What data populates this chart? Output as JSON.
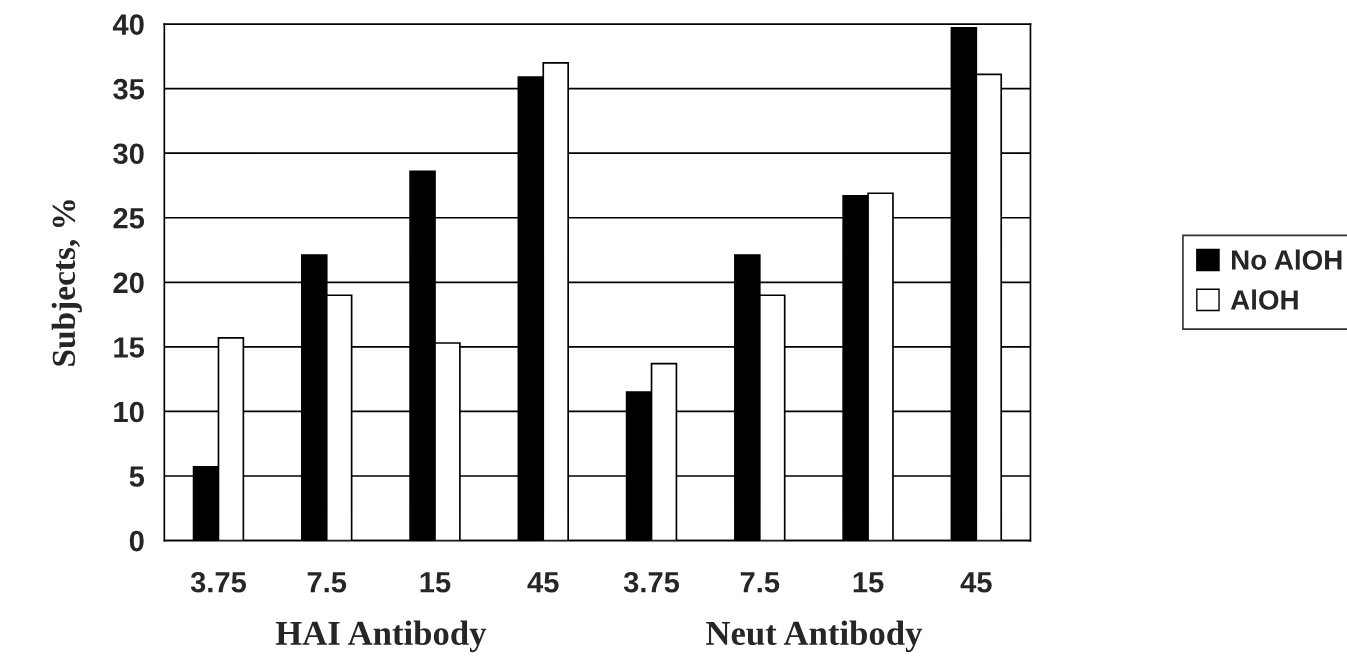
{
  "chart_data": {
    "type": "bar",
    "ylabel": "Subjects, %",
    "categories": [
      "3.75",
      "7.5",
      "15",
      "45",
      "3.75",
      "7.5",
      "15",
      "45"
    ],
    "series": [
      {
        "name": "No AlOH",
        "color": "#000000",
        "values": [
          5.7,
          22.1,
          28.6,
          35.9,
          11.5,
          22.1,
          26.7,
          39.7
        ]
      },
      {
        "name": "AlOH",
        "color": "#ffffff",
        "values": [
          15.7,
          19.0,
          15.3,
          37.0,
          13.7,
          19.0,
          26.9,
          36.1
        ]
      }
    ],
    "annotations": [
      "HAI Antibody",
      "Neut Antibody"
    ],
    "ylim": [
      0,
      40
    ],
    "yticks": [
      0,
      5,
      10,
      15,
      20,
      25,
      30,
      35,
      40
    ],
    "grid": "y",
    "legend": "right"
  }
}
